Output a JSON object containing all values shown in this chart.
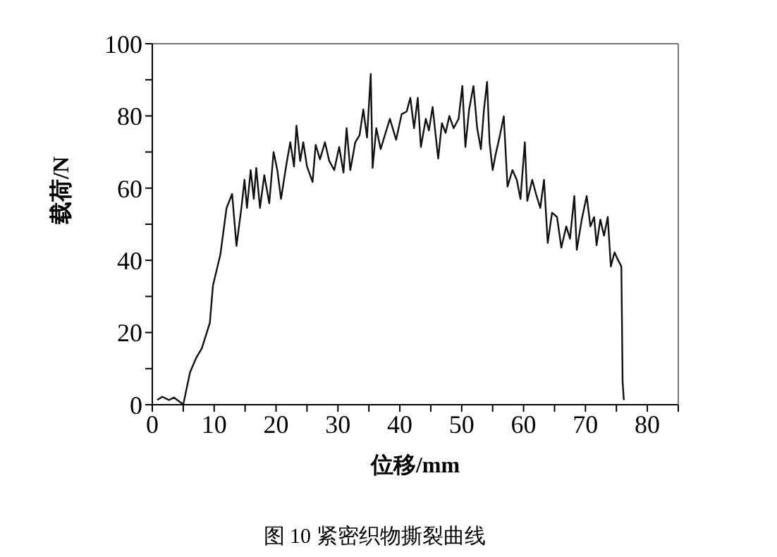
{
  "chart_data": {
    "type": "line",
    "title": "图 10 紧密织物撕裂曲线",
    "xlabel": "位移/mm",
    "ylabel": "载荷/N",
    "xlim": [
      0,
      85
    ],
    "ylim": [
      0,
      100
    ],
    "xticks": [
      0,
      {
        "value": 5,
        "label": null
      },
      10,
      {
        "value": 15,
        "label": null
      },
      20,
      {
        "value": 25,
        "label": null
      },
      30,
      {
        "value": 35,
        "label": null
      },
      40,
      {
        "value": 45,
        "label": null
      },
      50,
      {
        "value": 55,
        "label": null
      },
      60,
      {
        "value": 65,
        "label": null
      },
      70,
      {
        "value": 75,
        "label": null
      },
      80,
      {
        "value": 85,
        "label": null
      }
    ],
    "yticks": [
      0,
      {
        "value": 10,
        "label": null
      },
      20,
      {
        "value": 30,
        "label": null
      },
      40,
      {
        "value": 50,
        "label": null
      },
      60,
      {
        "value": 70,
        "label": null
      },
      80,
      {
        "value": 90,
        "label": null
      },
      100
    ],
    "marker": "none",
    "line_style": "solid",
    "series": [
      {
        "color": "#111111",
        "x": [
          0.8,
          1.6,
          2.7,
          3.5,
          4.6,
          5,
          6.1,
          7.1,
          8,
          9.3,
          9.8,
          11,
          12,
          12.9,
          13.6,
          14.4,
          14.9,
          15.3,
          15.9,
          16.4,
          16.8,
          17.4,
          18.1,
          18.9,
          19.6,
          20.2,
          20.8,
          21.7,
          22.3,
          22.9,
          23.3,
          23.9,
          24.4,
          25,
          25.9,
          26.4,
          27.1,
          27.9,
          28.6,
          29.4,
          30.2,
          30.9,
          31.4,
          32,
          32.8,
          33.5,
          34.1,
          34.7,
          35.3,
          35.6,
          36.2,
          36.9,
          37.7,
          38.4,
          39.4,
          40.3,
          41.1,
          41.7,
          42.3,
          42.9,
          43.4,
          44.2,
          44.7,
          45.3,
          46.2,
          46.8,
          47.4,
          48,
          48.7,
          49.5,
          50.1,
          50.6,
          51.2,
          51.9,
          52.5,
          53.1,
          53.6,
          54.1,
          54.5,
          55,
          55.5,
          56.1,
          56.8,
          57.4,
          58.2,
          58.9,
          59.5,
          60.2,
          60.6,
          61.4,
          62,
          62.7,
          63.3,
          63.9,
          64.6,
          65.4,
          66.1,
          66.9,
          67.5,
          68.2,
          68.6,
          69.4,
          70.2,
          70.8,
          71.4,
          71.8,
          72.4,
          73,
          73.6,
          74.1,
          74.7,
          75.2,
          75.8,
          76,
          76.2
        ],
        "values": [
          1.3,
          2.2,
          1.3,
          2,
          0.6,
          0,
          9,
          13,
          15.6,
          22.7,
          33,
          41.6,
          54.5,
          58.4,
          44,
          54.5,
          62.3,
          54.5,
          65,
          57,
          65.6,
          54.5,
          63.6,
          55.8,
          70,
          65,
          57,
          66.9,
          72.7,
          66,
          77.3,
          67.5,
          72.7,
          66,
          61.7,
          72,
          68,
          72.7,
          67.5,
          65,
          71.4,
          64.3,
          76.6,
          65,
          72.7,
          74.7,
          81.8,
          74,
          91.6,
          65.6,
          76.6,
          70.8,
          75.3,
          79.2,
          73.4,
          80.5,
          81.2,
          85,
          76.6,
          85,
          71.4,
          79.2,
          76,
          82.5,
          68.2,
          78,
          75.3,
          80,
          76.6,
          79.2,
          88.3,
          71.4,
          81.8,
          88.3,
          76.6,
          70.8,
          81.8,
          89.4,
          72.7,
          65,
          69.5,
          74,
          79.9,
          60.4,
          65,
          62.3,
          57,
          72.7,
          56.5,
          62.3,
          58.4,
          54.5,
          62.3,
          44.8,
          53.2,
          52,
          43.5,
          49.4,
          46,
          57.8,
          42.9,
          51.3,
          57.8,
          49.4,
          52,
          44.2,
          51.3,
          46.8,
          52,
          38.3,
          42.2,
          40.3,
          38.3,
          6.5,
          1.3
        ]
      }
    ]
  }
}
